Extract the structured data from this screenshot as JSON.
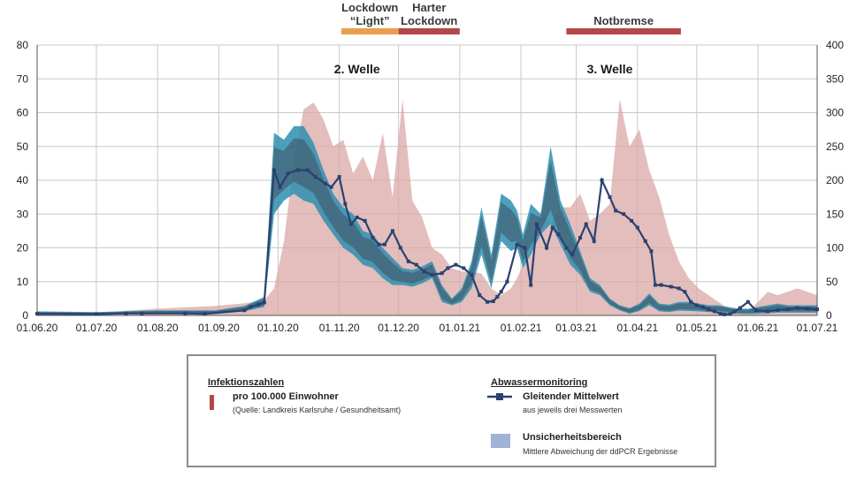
{
  "chart_data": {
    "type": "area",
    "dual_axis": true,
    "x_tick_labels": [
      "01.06.20",
      "01.07.20",
      "01.08.20",
      "01.09.20",
      "01.10.20",
      "01.11.20",
      "01.12.20",
      "01.01.21",
      "01.02.21",
      "01.03.21",
      "01.04.21",
      "01.05.21",
      "01.06.21",
      "01.07.21"
    ],
    "y_left": {
      "ticks": [
        0,
        10,
        20,
        30,
        40,
        50,
        60,
        70,
        80
      ],
      "ylim": [
        0,
        80
      ]
    },
    "y_right": {
      "ticks": [
        0,
        50,
        100,
        150,
        200,
        250,
        300,
        350,
        400
      ],
      "ylim": [
        0,
        400
      ]
    },
    "colors": {
      "infection": "#d9a8a6",
      "band": "#2e8fb0",
      "band_dark": "#3f4e5e",
      "line": "#2b4170",
      "lockdown_light": "#e8a04e",
      "lockdown_hard": "#b5474a",
      "notbremse": "#b5474a"
    },
    "periods": [
      {
        "label_lines": [
          "Lockdown",
          "“Light”"
        ],
        "start_day": 154,
        "end_day": 183,
        "color_key": "lockdown_light"
      },
      {
        "label_lines": [
          "Harter",
          "Lockdown"
        ],
        "start_day": 183,
        "end_day": 214,
        "color_key": "lockdown_hard"
      },
      {
        "label_lines": [
          "Notbremse"
        ],
        "start_day": 268,
        "end_day": 326,
        "color_key": "notbremse"
      }
    ],
    "annotations": [
      {
        "text": "2. Welle",
        "day": 162,
        "y": 73
      },
      {
        "text": "3. Welle",
        "day": 290,
        "y": 73
      }
    ],
    "infection_series": {
      "name": "Infektionszahlen pro 100.000 Einwohner",
      "axis": "right",
      "days": [
        0,
        30,
        60,
        90,
        105,
        115,
        120,
        125,
        130,
        135,
        140,
        145,
        150,
        155,
        160,
        165,
        170,
        175,
        180,
        185,
        190,
        195,
        200,
        205,
        210,
        215,
        220,
        225,
        230,
        235,
        240,
        243,
        246,
        250,
        255,
        260,
        265,
        270,
        275,
        280,
        285,
        290,
        295,
        300,
        305,
        310,
        315,
        320,
        325,
        330,
        335,
        340,
        345,
        350,
        355,
        360,
        365,
        370,
        375,
        380,
        385,
        395
      ],
      "values": [
        3,
        4,
        10,
        14,
        18,
        22,
        40,
        110,
        230,
        305,
        315,
        290,
        250,
        260,
        210,
        235,
        200,
        270,
        175,
        320,
        170,
        145,
        100,
        90,
        70,
        65,
        65,
        62,
        40,
        30,
        40,
        55,
        75,
        95,
        155,
        135,
        160,
        160,
        180,
        140,
        150,
        165,
        320,
        250,
        275,
        215,
        175,
        120,
        80,
        55,
        40,
        30,
        20,
        10,
        5,
        5,
        20,
        35,
        30,
        35,
        40,
        30
      ]
    },
    "uncertainty_band": {
      "name": "Unsicherheitsbereich",
      "axis": "left",
      "days": [
        0,
        30,
        60,
        90,
        105,
        115,
        120,
        125,
        130,
        135,
        140,
        145,
        150,
        155,
        160,
        165,
        170,
        175,
        180,
        185,
        190,
        195,
        200,
        205,
        210,
        215,
        220,
        225,
        230,
        235,
        240,
        243,
        246,
        250,
        255,
        260,
        265,
        270,
        275,
        280,
        285,
        290,
        295,
        300,
        305,
        310,
        315,
        320,
        325,
        330,
        335,
        340,
        345,
        350,
        355,
        360,
        365,
        370,
        375,
        380,
        385,
        395
      ],
      "upper": [
        1.2,
        1.0,
        1.5,
        1.5,
        2.8,
        5.5,
        54,
        52,
        56,
        56,
        51,
        43,
        36,
        32,
        30,
        25,
        24,
        20,
        17,
        14,
        13.5,
        14.5,
        16,
        9,
        5,
        8,
        16,
        32,
        18,
        36,
        34,
        31,
        24,
        33,
        30,
        50,
        34,
        27,
        19,
        11,
        9,
        5,
        3,
        2.2,
        3.5,
        6.5,
        3.5,
        3.2,
        4.0,
        4.0,
        3.5,
        3.0,
        3.0,
        2.5,
        2.0,
        2.0,
        2.5,
        3.0,
        3.5,
        3.0,
        3.0,
        3.0
      ],
      "lower": [
        0.2,
        0.2,
        0.4,
        0.4,
        1.2,
        2.5,
        30,
        34,
        36,
        34,
        33,
        28,
        24,
        20,
        18,
        15,
        14,
        11,
        9,
        9,
        8.5,
        9.5,
        11,
        4,
        3,
        4,
        8,
        18,
        8,
        22,
        19,
        20,
        14,
        18,
        24,
        27,
        21,
        15,
        12,
        7,
        6,
        3,
        1.5,
        0.5,
        1.3,
        3.0,
        1.2,
        1.0,
        1.4,
        1.3,
        1.2,
        1.0,
        1.0,
        0.7,
        0.5,
        0.4,
        0.5,
        0.6,
        0.8,
        0.8,
        0.8,
        0.8
      ]
    },
    "moving_average": {
      "name": "Gleitender Mittelwert",
      "axis": "left",
      "days": [
        0,
        30,
        45,
        53,
        75,
        85,
        105,
        108,
        112,
        115,
        120,
        123,
        127,
        132,
        137,
        141,
        146,
        149,
        153,
        156,
        159,
        162,
        166,
        170,
        173,
        176,
        180,
        184,
        188,
        192,
        196,
        200,
        205,
        208,
        212,
        216,
        220,
        224,
        228,
        231,
        233,
        235,
        238,
        243,
        247,
        250,
        253,
        258,
        261,
        264,
        268,
        271,
        275,
        278,
        282,
        286,
        290,
        293,
        297,
        301,
        304,
        308,
        311,
        313,
        316,
        321,
        325,
        328,
        331,
        334,
        337,
        340,
        343,
        346,
        348,
        351,
        353,
        356,
        360,
        364,
        370,
        375,
        380,
        385,
        390,
        395
      ],
      "values": [
        0.5,
        0.4,
        0.6,
        0.6,
        0.6,
        0.5,
        1.5,
        2.5,
        3.2,
        3.8,
        43,
        38,
        42,
        43,
        43,
        41,
        39,
        38,
        41,
        33,
        27,
        29,
        28,
        23,
        21,
        21,
        25,
        20,
        16,
        15,
        13,
        12,
        12.5,
        14,
        15,
        14,
        12,
        6,
        4,
        4.2,
        5.5,
        7,
        10,
        21,
        20,
        9,
        27,
        20,
        26,
        24,
        20,
        18,
        23,
        27,
        22,
        40,
        35,
        31,
        30,
        28,
        26,
        22,
        19,
        9,
        9,
        8.5,
        8,
        7,
        4,
        3,
        2.5,
        1.8,
        1.2,
        0.5,
        0.3,
        0.4,
        1.1,
        2.2,
        4,
        1.5,
        1.2,
        1.6,
        1.8,
        2.2,
        2.0,
        1.8
      ]
    },
    "legend": {
      "left_heading": "Infektionszahlen",
      "left_main": "pro 100.000 Einwohner",
      "left_sub": "(Quelle: Landkreis Karlsruhe / Gesundheitsamt)",
      "right_heading": "Abwassermonitoring",
      "right_main1": "Gleitender Mittelwert",
      "right_sub1": "aus jeweils drei Messwerten",
      "right_main2": "Unsicherheitsbereich",
      "right_sub2": "Mittlere Abweichung der ddPCR Ergebnisse"
    }
  }
}
